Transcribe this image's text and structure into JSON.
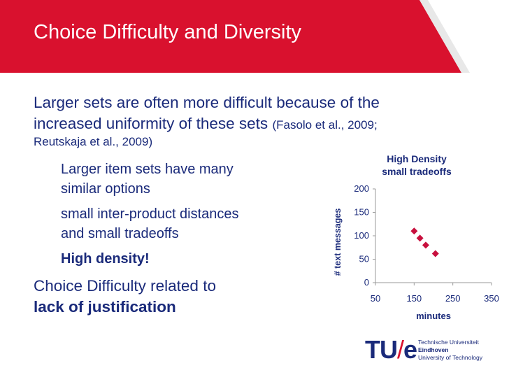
{
  "slide": {
    "title": "Choice Difficulty and Diversity",
    "main_line1": "Larger sets are often more difficult because of the",
    "main_line2": "increased uniformity of these sets",
    "citation_a": "(Fasolo et al., 2009;",
    "citation_b": "Reutskaja et al., 2009)",
    "bullet1_line1": "Larger item sets have many",
    "bullet1_line2": "similar options",
    "bullet2_line1": "small inter-product distances",
    "bullet2_line2": "and small tradeoffs",
    "bullet3": "High density!",
    "conclusion_line1": "Choice Difficulty related to",
    "conclusion_line2": "lack of justification"
  },
  "logo": {
    "mark_left": "TU",
    "mark_slash": "/",
    "mark_right": "e",
    "line1": "Technische Universiteit",
    "line2": "Eindhoven",
    "line3": "University of Technology"
  },
  "colors": {
    "header": "#d9112e",
    "text": "#1a2a7a",
    "marker": "#c8103e"
  },
  "chart_data": {
    "type": "scatter",
    "title_line1": "High Density",
    "title_line2": "small tradeoffs",
    "xlabel": "minutes",
    "ylabel": "# text messages",
    "xlim": [
      50,
      350
    ],
    "ylim": [
      0,
      200
    ],
    "x_ticks": [
      "50",
      "150",
      "250",
      "350"
    ],
    "y_ticks": [
      "200",
      "150",
      "100",
      "50",
      "0"
    ],
    "grid": false,
    "points": [
      {
        "x": 150,
        "y": 110
      },
      {
        "x": 165,
        "y": 95
      },
      {
        "x": 180,
        "y": 80
      },
      {
        "x": 205,
        "y": 62
      }
    ]
  }
}
